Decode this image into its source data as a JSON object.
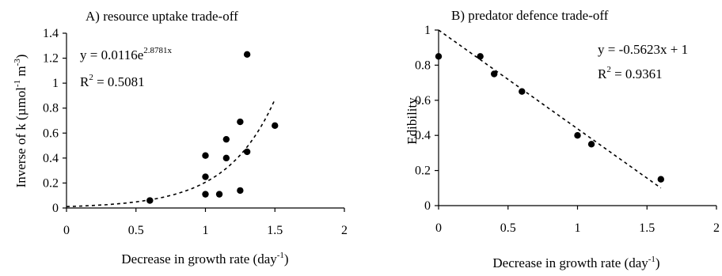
{
  "chart_data": [
    {
      "type": "scatter",
      "title": "A) resource uptake trade-off",
      "xlabel": {
        "main": "Decrease in growth rate (day",
        "sup": "-1",
        "end": ")"
      },
      "ylabel": {
        "main": "Inverse of k (µmol",
        "sup1": "-1",
        "mid": " m",
        "sup2": "-3",
        "end": ")"
      },
      "xlim": [
        0,
        2
      ],
      "ylim": [
        0,
        1.4
      ],
      "xticks": [
        {
          "v": 0,
          "label": "0"
        },
        {
          "v": 0.5,
          "label": "0.5"
        },
        {
          "v": 1,
          "label": "1"
        },
        {
          "v": 1.5,
          "label": "1.5"
        },
        {
          "v": 2,
          "label": "2"
        }
      ],
      "yticks": [
        {
          "v": 0,
          "label": "0"
        },
        {
          "v": 0.2,
          "label": "0.2"
        },
        {
          "v": 0.4,
          "label": "0.4"
        },
        {
          "v": 0.6,
          "label": "0.6"
        },
        {
          "v": 0.8,
          "label": "0.8"
        },
        {
          "v": 1,
          "label": "1"
        },
        {
          "v": 1.2,
          "label": "1.2"
        },
        {
          "v": 1.4,
          "label": "1.4"
        }
      ],
      "points": [
        {
          "x": 0.6,
          "y": 0.06
        },
        {
          "x": 1.0,
          "y": 0.42
        },
        {
          "x": 1.0,
          "y": 0.25
        },
        {
          "x": 1.0,
          "y": 0.11
        },
        {
          "x": 1.1,
          "y": 0.11
        },
        {
          "x": 1.15,
          "y": 0.55
        },
        {
          "x": 1.15,
          "y": 0.4
        },
        {
          "x": 1.25,
          "y": 0.69
        },
        {
          "x": 1.25,
          "y": 0.14
        },
        {
          "x": 1.3,
          "y": 1.23
        },
        {
          "x": 1.3,
          "y": 0.45
        },
        {
          "x": 1.5,
          "y": 0.66
        }
      ],
      "trendline": {
        "kind": "exponential",
        "a": 0.0116,
        "b": 2.8781,
        "x_from": 0,
        "x_to": 1.5
      },
      "equation": {
        "main": "y = 0.0116e",
        "sup": "2.8781x"
      },
      "r2": {
        "pre": "R",
        "sup": "2",
        "post": " = 0.5081"
      }
    },
    {
      "type": "scatter",
      "title": "B) predator defence trade-off",
      "xlabel": {
        "main": "Decrease in growth rate (day",
        "sup": "-1",
        "end": ")"
      },
      "ylabel": {
        "main": "Edibility"
      },
      "xlim": [
        0,
        2
      ],
      "ylim": [
        0,
        1
      ],
      "xticks": [
        {
          "v": 0,
          "label": "0"
        },
        {
          "v": 0.5,
          "label": "0.5"
        },
        {
          "v": 1,
          "label": "1"
        },
        {
          "v": 1.5,
          "label": "1.5"
        },
        {
          "v": 2,
          "label": "2"
        }
      ],
      "yticks": [
        {
          "v": 0,
          "label": "0"
        },
        {
          "v": 0.2,
          "label": "0.2"
        },
        {
          "v": 0.4,
          "label": "0.4"
        },
        {
          "v": 0.6,
          "label": "0.6"
        },
        {
          "v": 0.8,
          "label": "0.8"
        },
        {
          "v": 1,
          "label": "1"
        }
      ],
      "points": [
        {
          "x": 0.0,
          "y": 0.85
        },
        {
          "x": 0.3,
          "y": 0.85
        },
        {
          "x": 0.4,
          "y": 0.75
        },
        {
          "x": 0.6,
          "y": 0.65
        },
        {
          "x": 1.0,
          "y": 0.4
        },
        {
          "x": 1.1,
          "y": 0.35
        },
        {
          "x": 1.6,
          "y": 0.15
        }
      ],
      "trendline": {
        "kind": "linear",
        "slope": -0.5623,
        "intercept": 1,
        "x_from": 0,
        "x_to": 1.6
      },
      "equation": {
        "main": "y = -0.5623x + 1"
      },
      "r2": {
        "pre": "R",
        "sup": "2",
        "post": " = 0.9361"
      }
    }
  ]
}
